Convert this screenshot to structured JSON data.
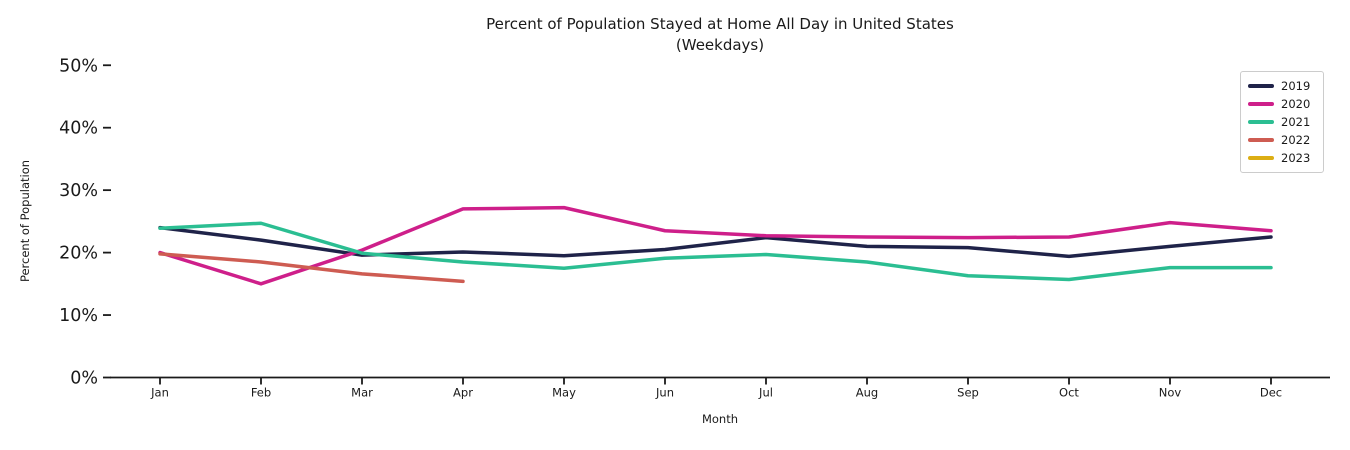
{
  "title": {
    "line1": "Percent of Population Stayed at Home All Day in United States",
    "line2": "(Weekdays)"
  },
  "axes": {
    "x_label": "Month",
    "y_label": "Percent of Population",
    "x_ticks": [
      "Jan",
      "Feb",
      "Mar",
      "Apr",
      "May",
      "Jun",
      "Jul",
      "Aug",
      "Sep",
      "Oct",
      "Nov",
      "Dec"
    ],
    "y_ticks": [
      "0%",
      "10%",
      "20%",
      "30%",
      "40%",
      "50%"
    ]
  },
  "colors": {
    "axis": "#1a1a1a",
    "legend_border": "#cccccc",
    "background": "#ffffff"
  },
  "chart_data": {
    "type": "line",
    "title": "Percent of Population Stayed at Home All Day in United States",
    "subtitle": "(Weekdays)",
    "xlabel": "Month",
    "ylabel": "Percent of Population",
    "categories": [
      "Jan",
      "Feb",
      "Mar",
      "Apr",
      "May",
      "Jun",
      "Jul",
      "Aug",
      "Sep",
      "Oct",
      "Nov",
      "Dec"
    ],
    "ylim": [
      0,
      50
    ],
    "y_tick_step": 10,
    "y_tick_suffix": "%",
    "grid": false,
    "legend_position": "upper right",
    "series": [
      {
        "name": "2019",
        "color": "#1F2349",
        "values": [
          24.0,
          22.0,
          19.6,
          20.1,
          19.5,
          20.5,
          22.4,
          21.0,
          20.8,
          19.4,
          21.0,
          22.5
        ]
      },
      {
        "name": "2020",
        "color": "#CE1F8A",
        "values": [
          20.0,
          15.0,
          20.4,
          27.0,
          27.2,
          23.5,
          22.7,
          22.5,
          22.4,
          22.5,
          24.8,
          23.5
        ]
      },
      {
        "name": "2021",
        "color": "#2BBE92",
        "values": [
          23.9,
          24.7,
          19.9,
          18.5,
          17.5,
          19.1,
          19.7,
          18.5,
          16.3,
          15.7,
          17.6,
          17.6
        ]
      },
      {
        "name": "2022",
        "color": "#CE5C52",
        "values": [
          19.8,
          18.5,
          16.6,
          15.4
        ]
      },
      {
        "name": "2023",
        "color": "#DCAE14",
        "values": []
      }
    ]
  }
}
